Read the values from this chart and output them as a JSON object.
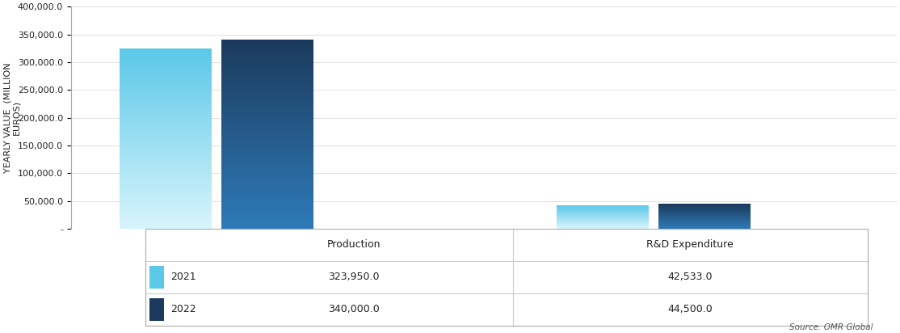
{
  "categories": [
    "Production",
    "R&D Expenditure"
  ],
  "values_2021": [
    323950.0,
    42533.0
  ],
  "values_2022": [
    340000.0,
    44500.0
  ],
  "color_2021_top": "#5BC8E8",
  "color_2021_bottom": "#D8F4FC",
  "color_2022_top": "#1B3A5C",
  "color_2022_bottom": "#2E7AB8",
  "ylabel": "YEARLY VALUE  (MILLION\nEUROS)",
  "ylim": [
    0,
    400000
  ],
  "yticks": [
    0,
    50000,
    100000,
    150000,
    200000,
    250000,
    300000,
    350000,
    400000
  ],
  "ytick_labels": [
    "-",
    "50,000.0",
    "100,000.0",
    "150,000.0",
    "200,000.0",
    "250,000.0",
    "300,000.0",
    "350,000.0",
    "400,000.0"
  ],
  "source_text": "Source: OMR Global",
  "bar_width": 0.35,
  "legend_2021": "2021",
  "legend_2022": "2022",
  "table_row1": [
    "2021",
    "323,950.0",
    "42,533.0"
  ],
  "table_row2": [
    "2022",
    "340,000.0",
    "44,500.0"
  ],
  "background_color": "#FFFFFF",
  "grid_color": "#E0E0E0"
}
